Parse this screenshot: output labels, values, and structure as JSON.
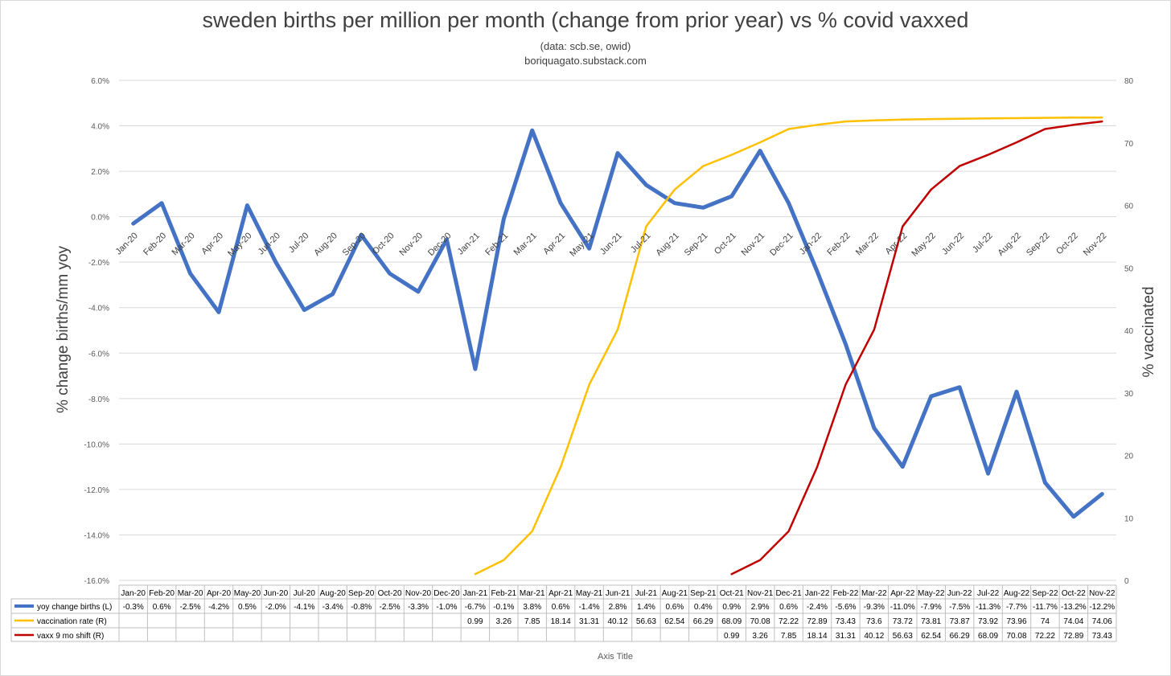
{
  "chart_data": {
    "type": "line",
    "title": "sweden births per million per month (change from prior year) vs % covid vaxxed",
    "subtitle_lines": [
      "(data: scb.se, owid)",
      "boriquagato.substack.com"
    ],
    "ylabel_left": "% change births/mm yoy",
    "ylabel_right": "% vaccinated",
    "xlabel": "Axis Title",
    "y_left_ticks": [
      "6.0%",
      "4.0%",
      "2.0%",
      "0.0%",
      "-2.0%",
      "-4.0%",
      "-6.0%",
      "-8.0%",
      "-10.0%",
      "-12.0%",
      "-14.0%",
      "-16.0%"
    ],
    "y_right_ticks": [
      "80",
      "70",
      "60",
      "50",
      "40",
      "30",
      "20",
      "10",
      "0"
    ],
    "ylim_left": [
      -16,
      6
    ],
    "ylim_right": [
      0,
      80
    ],
    "grid": true,
    "legend": "data-table",
    "categories": [
      "Jan-20",
      "Feb-20",
      "Mar-20",
      "Apr-20",
      "May-20",
      "Jun-20",
      "Jul-20",
      "Aug-20",
      "Sep-20",
      "Oct-20",
      "Nov-20",
      "Dec-20",
      "Jan-21",
      "Feb-21",
      "Mar-21",
      "Apr-21",
      "May-21",
      "Jun-21",
      "Jul-21",
      "Aug-21",
      "Sep-21",
      "Oct-21",
      "Nov-21",
      "Dec-21",
      "Jan-22",
      "Feb-22",
      "Mar-22",
      "Apr-22",
      "May-22",
      "Jun-22",
      "Jul-22",
      "Aug-22",
      "Sep-22",
      "Oct-22",
      "Nov-22"
    ],
    "series": [
      {
        "name": "yoy change births (L)",
        "axis": "left",
        "color": "#4472c4",
        "values": [
          -0.3,
          0.6,
          -2.5,
          -4.2,
          0.5,
          -2.0,
          -4.1,
          -3.4,
          -0.8,
          -2.5,
          -3.3,
          -1.0,
          -6.7,
          -0.1,
          3.8,
          0.6,
          -1.4,
          2.8,
          1.4,
          0.6,
          0.4,
          0.9,
          2.9,
          0.6,
          -2.4,
          -5.6,
          -9.3,
          -11.0,
          -7.9,
          -7.5,
          -11.3,
          -7.7,
          -11.7,
          -13.2,
          -12.2
        ],
        "labels": [
          "-0.3%",
          "0.6%",
          "-2.5%",
          "-4.2%",
          "0.5%",
          "-2.0%",
          "-4.1%",
          "-3.4%",
          "-0.8%",
          "-2.5%",
          "-3.3%",
          "-1.0%",
          "-6.7%",
          "-0.1%",
          "3.8%",
          "0.6%",
          "-1.4%",
          "2.8%",
          "1.4%",
          "0.6%",
          "0.4%",
          "0.9%",
          "2.9%",
          "0.6%",
          "-2.4%",
          "-5.6%",
          "-9.3%",
          "-11.0%",
          "-7.9%",
          "-7.5%",
          "-11.3%",
          "-7.7%",
          "-11.7%",
          "-13.2%",
          "-12.2%"
        ]
      },
      {
        "name": "vaccination rate (R)",
        "axis": "right",
        "color": "#ffc000",
        "values": [
          null,
          null,
          null,
          null,
          null,
          null,
          null,
          null,
          null,
          null,
          null,
          null,
          0.99,
          3.26,
          7.85,
          18.14,
          31.31,
          40.12,
          56.63,
          62.54,
          66.29,
          68.09,
          70.08,
          72.22,
          72.89,
          73.43,
          73.6,
          73.72,
          73.81,
          73.87,
          73.92,
          73.96,
          74,
          74.04,
          74.06
        ],
        "labels": [
          "",
          "",
          "",
          "",
          "",
          "",
          "",
          "",
          "",
          "",
          "",
          "",
          "0.99",
          "3.26",
          "7.85",
          "18.14",
          "31.31",
          "40.12",
          "56.63",
          "62.54",
          "66.29",
          "68.09",
          "70.08",
          "72.22",
          "72.89",
          "73.43",
          "73.6",
          "73.72",
          "73.81",
          "73.87",
          "73.92",
          "73.96",
          "74",
          "74.04",
          "74.06"
        ]
      },
      {
        "name": "vaxx 9 mo shift (R)",
        "axis": "right",
        "color": "#c00000",
        "values": [
          null,
          null,
          null,
          null,
          null,
          null,
          null,
          null,
          null,
          null,
          null,
          null,
          null,
          null,
          null,
          null,
          null,
          null,
          null,
          null,
          null,
          0.99,
          3.26,
          7.85,
          18.14,
          31.31,
          40.12,
          56.63,
          62.54,
          66.29,
          68.09,
          70.08,
          72.22,
          72.89,
          73.43
        ],
        "labels": [
          "",
          "",
          "",
          "",
          "",
          "",
          "",
          "",
          "",
          "",
          "",
          "",
          "",
          "",
          "",
          "",
          "",
          "",
          "",
          "",
          "",
          "0.99",
          "3.26",
          "7.85",
          "18.14",
          "31.31",
          "40.12",
          "56.63",
          "62.54",
          "66.29",
          "68.09",
          "70.08",
          "72.22",
          "72.89",
          "73.43"
        ]
      }
    ]
  }
}
